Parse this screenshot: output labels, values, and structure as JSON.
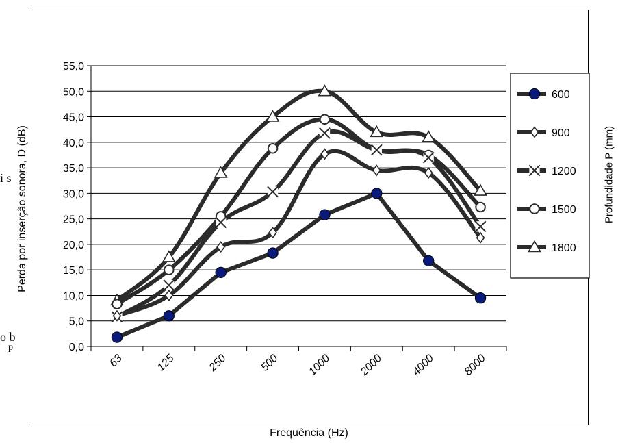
{
  "page_fragments": [
    "i s",
    "o b",
    "p"
  ],
  "chart_data": {
    "type": "line",
    "title": "",
    "xlabel": "Frequência (Hz)",
    "ylabel": "Perda por inserção sonora, D (dB)",
    "ylabel2": "Profundidade P (mm)",
    "categories": [
      "63",
      "125",
      "250",
      "500",
      "1000",
      "2000",
      "4000",
      "8000"
    ],
    "ylim": [
      0,
      55
    ],
    "yticks": [
      "0,0",
      "5,0",
      "10,0",
      "15,0",
      "20,0",
      "25,0",
      "30,0",
      "35,0",
      "40,0",
      "45,0",
      "50,0",
      "55,0"
    ],
    "grid": true,
    "legend_position": "right",
    "series": [
      {
        "name": "600",
        "marker": "filled-circle",
        "color": "#2b2b2b",
        "marker_color": "#0a1a7a",
        "values": [
          1.8,
          6.0,
          14.5,
          18.3,
          25.8,
          30.0,
          16.8,
          9.5
        ]
      },
      {
        "name": "900",
        "marker": "diamond",
        "color": "#2b2b2b",
        "values": [
          6.0,
          10.0,
          19.5,
          22.3,
          37.7,
          34.5,
          34.0,
          21.3
        ]
      },
      {
        "name": "1200",
        "marker": "x",
        "color": "#2b2b2b",
        "values": [
          5.8,
          12.0,
          24.3,
          30.3,
          41.8,
          38.5,
          37.0,
          23.5
        ]
      },
      {
        "name": "1500",
        "marker": "circle",
        "color": "#2b2b2b",
        "values": [
          8.3,
          15.0,
          25.5,
          38.8,
          44.5,
          38.5,
          37.5,
          27.3
        ]
      },
      {
        "name": "1800",
        "marker": "triangle",
        "color": "#2b2b2b",
        "values": [
          9.0,
          17.5,
          34.0,
          45.0,
          50.0,
          42.0,
          41.0,
          30.5
        ]
      }
    ]
  }
}
